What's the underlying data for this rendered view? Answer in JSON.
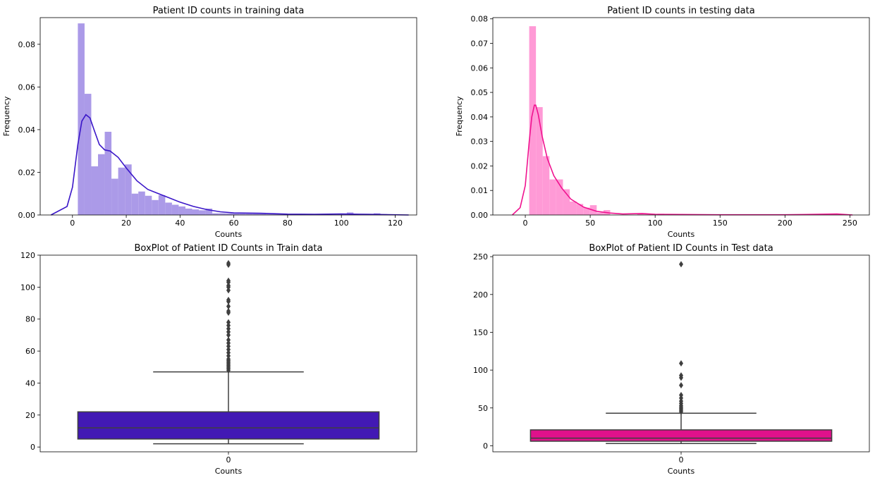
{
  "chart_data": [
    {
      "type": "histogram",
      "title": "Patient ID counts in training data",
      "xlabel": "Counts",
      "ylabel": "Frequency",
      "xlim": [
        -12,
        128
      ],
      "ylim": [
        0,
        0.0925
      ],
      "xticks": [
        0,
        20,
        40,
        60,
        80,
        100,
        120
      ],
      "yticks": [
        0.0,
        0.02,
        0.04,
        0.06,
        0.08
      ],
      "ytick_labels": [
        "0.00",
        "0.02",
        "0.04",
        "0.06",
        "0.08"
      ],
      "bar_color": "#ab9ae8",
      "kde_color": "#3a16c8",
      "bins": {
        "start": 2.0,
        "width": 2.5,
        "values": [
          0.0898,
          0.0568,
          0.0228,
          0.0285,
          0.039,
          0.017,
          0.0222,
          0.0237,
          0.01,
          0.011,
          0.009,
          0.007,
          0.0093,
          0.0058,
          0.0048,
          0.004,
          0.003,
          0.0026,
          0.0022,
          0.003,
          0.0008,
          0.0008,
          0.0008,
          0.0008,
          0.0008,
          0.0008,
          0.0008,
          0.0008,
          0.0004,
          0.0004,
          0.0004,
          0.0004,
          0.0004,
          0.0004,
          0.0004,
          0.0004,
          0.0004,
          0.0004,
          0.0004,
          0.0004,
          0.0012,
          0.0004,
          0.0,
          0.0,
          0.0008,
          0.0004
        ]
      },
      "kde": {
        "x": [
          -8,
          -2,
          0,
          2,
          3.5,
          5,
          6.5,
          8,
          10,
          12,
          14,
          17,
          20,
          24,
          28,
          32,
          36,
          40,
          45,
          50,
          55,
          60,
          70,
          80,
          90,
          100,
          110,
          125
        ],
        "y": [
          0.0,
          0.004,
          0.013,
          0.033,
          0.044,
          0.047,
          0.0455,
          0.04,
          0.033,
          0.0305,
          0.03,
          0.027,
          0.022,
          0.016,
          0.012,
          0.01,
          0.008,
          0.006,
          0.004,
          0.0025,
          0.0015,
          0.001,
          0.0008,
          0.0004,
          0.0003,
          0.0005,
          0.0003,
          0.0
        ]
      }
    },
    {
      "type": "histogram",
      "title": "Patient ID counts in testing data",
      "xlabel": "Counts",
      "ylabel": "Frequency",
      "xlim": [
        -25,
        265
      ],
      "ylim": [
        0,
        0.0805
      ],
      "xticks": [
        0,
        50,
        100,
        150,
        200,
        250
      ],
      "yticks": [
        0.0,
        0.01,
        0.02,
        0.03,
        0.04,
        0.05,
        0.06,
        0.07,
        0.08
      ],
      "ytick_labels": [
        "0.00",
        "0.01",
        "0.02",
        "0.03",
        "0.04",
        "0.05",
        "0.06",
        "0.07",
        "0.08"
      ],
      "bar_color": "#ff9ad6",
      "kde_color": "#f0128f",
      "bins": {
        "start": 3.0,
        "width": 5.2,
        "values": [
          0.077,
          0.044,
          0.024,
          0.0145,
          0.0145,
          0.0105,
          0.0055,
          0.0045,
          0.003,
          0.004,
          0.001,
          0.002,
          0.0,
          0.0,
          0.0,
          0.0,
          0.0005,
          0.0005,
          0.0,
          0.0005
        ]
      },
      "kde": {
        "x": [
          -10,
          -4,
          0,
          3,
          5,
          7,
          8,
          10,
          13,
          17,
          22,
          28,
          35,
          45,
          55,
          65,
          75,
          90,
          100,
          120,
          150,
          200,
          240,
          252
        ],
        "y": [
          0.0,
          0.003,
          0.012,
          0.03,
          0.04,
          0.0448,
          0.0448,
          0.041,
          0.032,
          0.023,
          0.016,
          0.011,
          0.0065,
          0.0032,
          0.0015,
          0.0008,
          0.0004,
          0.0006,
          0.0003,
          0.0002,
          0.0001,
          0.0001,
          0.0004,
          0.0
        ]
      }
    },
    {
      "type": "box",
      "title": "BoxPlot of Patient ID Counts in Train data",
      "xlabel": "Counts",
      "category_label": "0",
      "ylim": [
        -3,
        120
      ],
      "yticks": [
        0,
        20,
        40,
        60,
        80,
        100,
        120
      ],
      "box_color": "#4219b4",
      "whisker_low": 2,
      "q1": 5,
      "median": 12,
      "q3": 22,
      "whisker_high": 47,
      "outliers": [
        48,
        49,
        50,
        51,
        52,
        53,
        54,
        55,
        57,
        59,
        61,
        63,
        65,
        67,
        70,
        72,
        74,
        76,
        78,
        84,
        85,
        88,
        91,
        92,
        98,
        100,
        101,
        103,
        104,
        114,
        115
      ]
    },
    {
      "type": "box",
      "title": "BoxPlot of Patient ID Counts in Test data",
      "xlabel": "Counts",
      "category_label": "0",
      "ylim": [
        -8,
        252
      ],
      "yticks": [
        0,
        50,
        100,
        150,
        200,
        250
      ],
      "box_color": "#e0118b",
      "whisker_low": 3,
      "q1": 6,
      "median": 10,
      "q3": 21,
      "whisker_high": 43,
      "outliers": [
        45,
        47,
        49,
        51,
        53,
        56,
        59,
        63,
        67,
        80,
        90,
        93,
        109,
        240
      ]
    }
  ]
}
